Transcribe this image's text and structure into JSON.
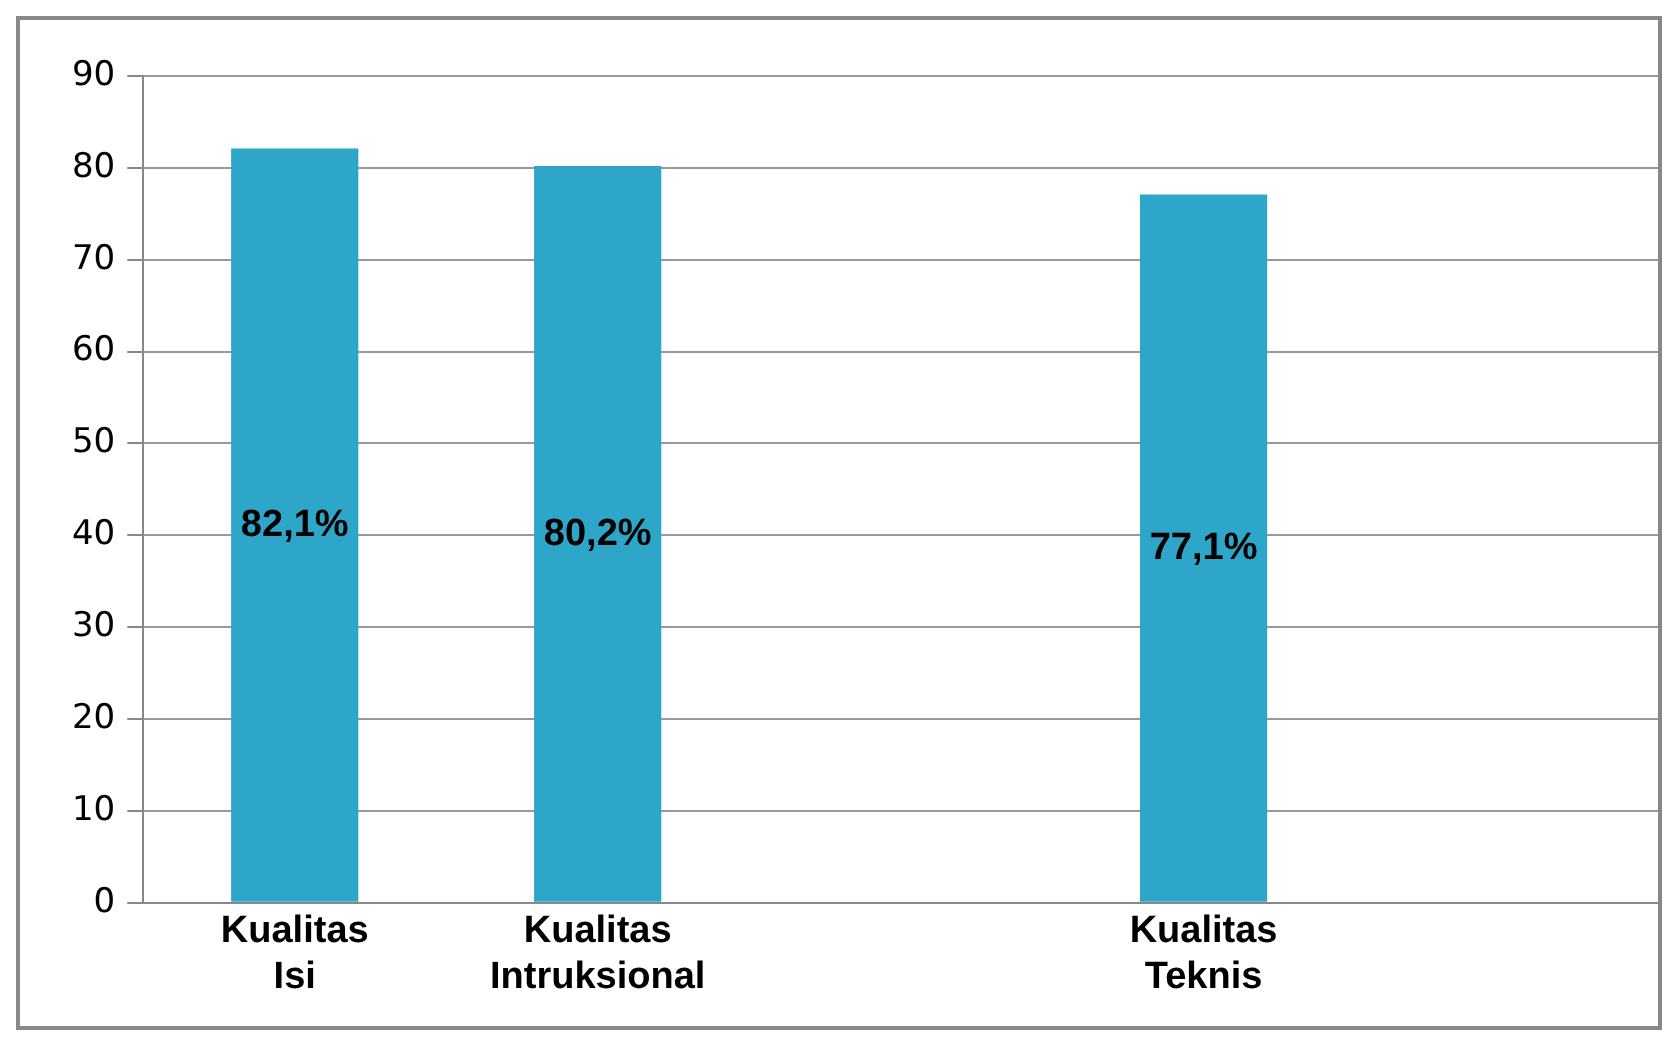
{
  "chart_data": {
    "type": "bar",
    "categories": [
      "Kualitas Isi",
      "Kualitas Intruksional",
      null,
      "Kualitas Teknis",
      null
    ],
    "values": [
      82.1,
      80.2,
      null,
      77.1,
      null
    ],
    "color": "#2ea6c9",
    "value_labels": [
      "82,1%",
      "80,2%",
      null,
      "77,1%",
      null
    ],
    "ylim": [
      0,
      90
    ],
    "yticks": [
      0,
      10,
      20,
      30,
      40,
      50,
      60,
      70,
      80,
      90
    ],
    "grid": "y",
    "legend": false
  }
}
